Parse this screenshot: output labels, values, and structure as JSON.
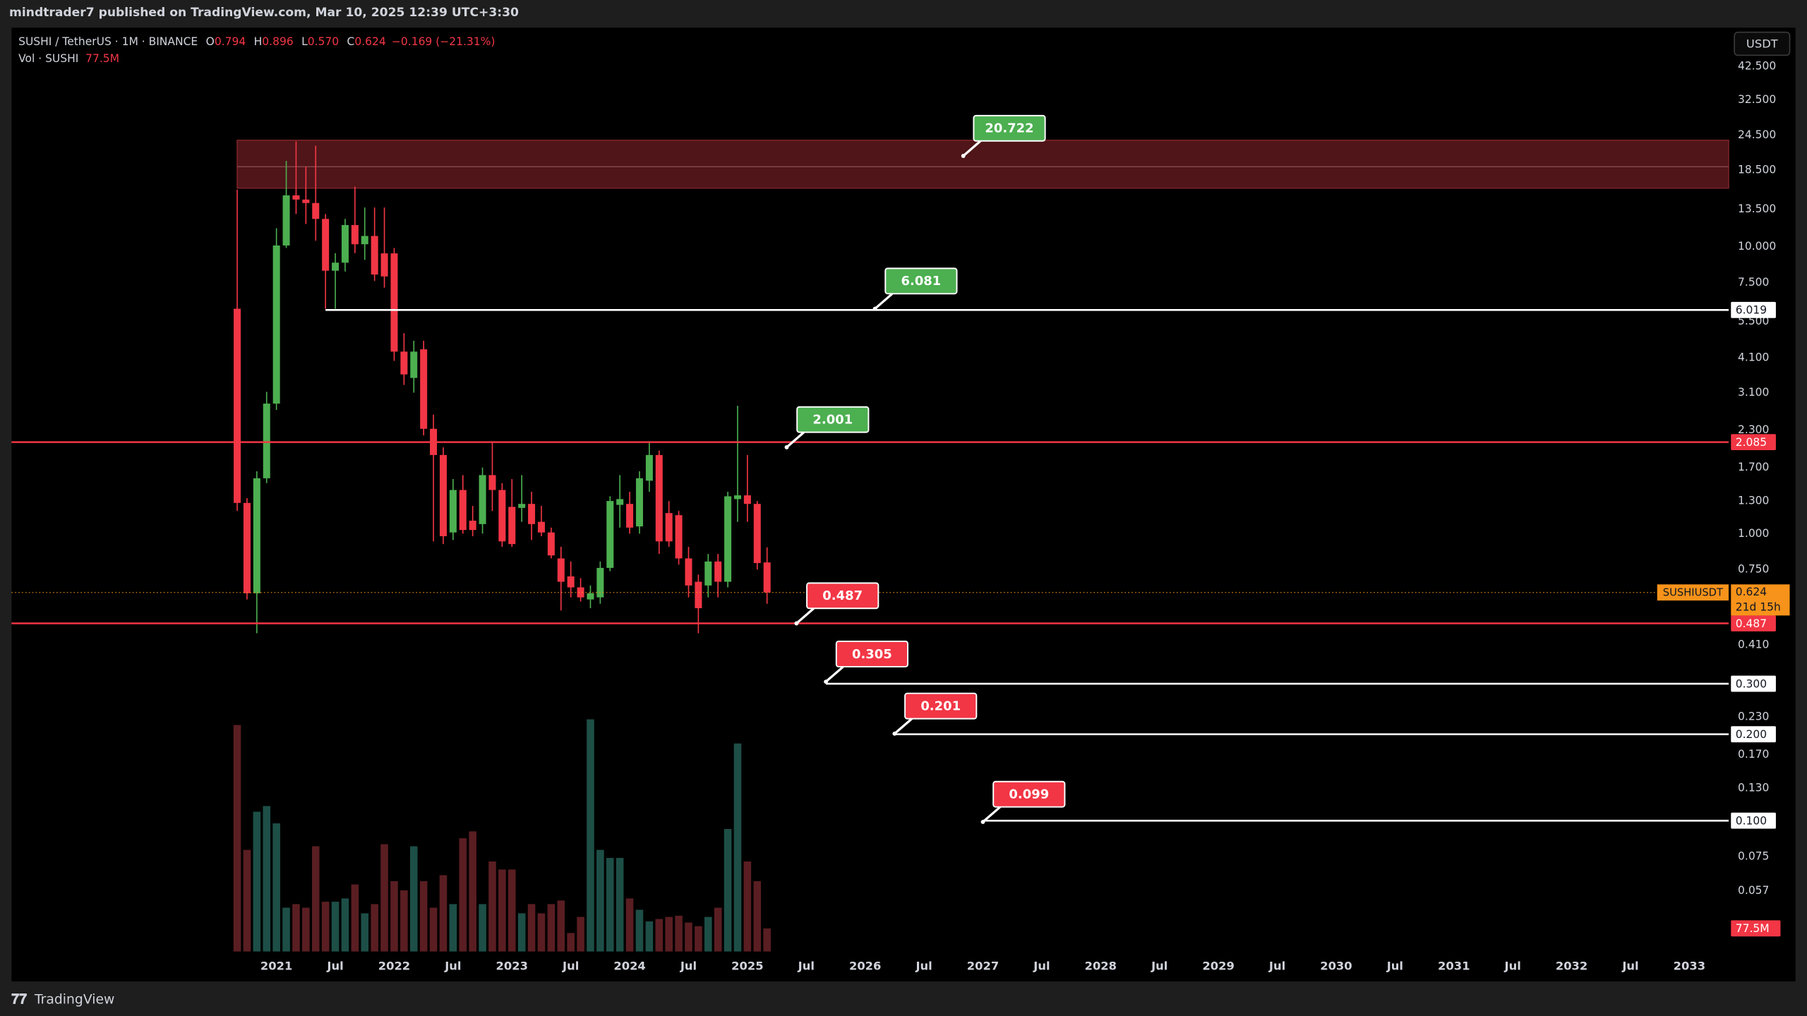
{
  "header": "mindtrader7 published on TradingView.com, Mar 10, 2025 12:39 UTC+3:30",
  "footer": "TradingView",
  "currency_button": "USDT",
  "chart_data": {
    "type": "candlestick",
    "legend": {
      "symbol": "SUSHI / TetherUS · 1M · BINANCE",
      "fields": [
        {
          "key": "O",
          "value": "0.794"
        },
        {
          "key": "H",
          "value": "0.896"
        },
        {
          "key": "L",
          "value": "0.570"
        },
        {
          "key": "C",
          "value": "0.624"
        }
      ],
      "change": "−0.169 (−21.31%)"
    },
    "x": [
      "2020-09",
      "2020-10",
      "2020-11",
      "2020-12",
      "2021-01",
      "2021-02",
      "2021-03",
      "2021-04",
      "2021-05",
      "2021-06",
      "2021-07",
      "2021-08",
      "2021-09",
      "2021-10",
      "2021-11",
      "2021-12",
      "2022-01",
      "2022-02",
      "2022-03",
      "2022-04",
      "2022-05",
      "2022-06",
      "2022-07",
      "2022-08",
      "2022-09",
      "2022-10",
      "2022-11",
      "2022-12",
      "2023-01",
      "2023-02",
      "2023-03",
      "2023-04",
      "2023-05",
      "2023-06",
      "2023-07",
      "2023-08",
      "2023-09",
      "2023-10",
      "2023-11",
      "2023-12",
      "2024-01",
      "2024-02",
      "2024-03",
      "2024-04",
      "2024-05",
      "2024-06",
      "2024-07",
      "2024-08",
      "2024-09",
      "2024-10",
      "2024-11",
      "2024-12",
      "2025-01",
      "2025-02",
      "2025-03"
    ],
    "open": [
      6.08,
      1.28,
      0.62,
      1.56,
      2.84,
      10.1,
      15.1,
      14.6,
      14.2,
      12.5,
      8.25,
      8.8,
      11.9,
      10.2,
      10.9,
      9.48,
      9.48,
      4.31,
      3.49,
      4.39,
      2.32,
      1.88,
      1.01,
      1.42,
      1.11,
      1.08,
      1.6,
      1.42,
      1.24,
      1.23,
      1.27,
      1.1,
      1.01,
      0.82,
      0.71,
      0.65,
      0.59,
      0.6,
      0.76,
      1.26,
      1.27,
      1.06,
      1.53,
      1.88,
      1.18,
      1.16,
      0.82,
      0.68,
      0.66,
      0.8,
      0.68,
      1.32,
      1.36,
      1.27,
      0.794
    ],
    "high": [
      15.8,
      1.33,
      1.65,
      3.12,
      11.6,
      19.9,
      23.3,
      19.0,
      22.5,
      13.0,
      9.5,
      12.5,
      16.2,
      13.7,
      13.7,
      13.7,
      9.9,
      5.0,
      4.7,
      4.7,
      2.6,
      2.0,
      1.55,
      1.6,
      1.25,
      1.7,
      2.08,
      1.5,
      1.55,
      1.6,
      1.4,
      1.25,
      1.05,
      0.9,
      0.8,
      0.7,
      0.66,
      0.8,
      1.35,
      1.6,
      1.4,
      1.65,
      2.1,
      1.95,
      1.3,
      1.2,
      0.9,
      0.72,
      0.85,
      0.85,
      1.4,
      2.79,
      1.88,
      1.3,
      0.896
    ],
    "low": [
      1.2,
      0.59,
      0.45,
      1.5,
      2.7,
      9.9,
      13.0,
      12.0,
      10.5,
      6.08,
      6.08,
      8.2,
      9.5,
      9.0,
      7.6,
      7.2,
      4.0,
      3.3,
      3.1,
      2.2,
      0.94,
      0.92,
      0.95,
      1.0,
      0.98,
      1.0,
      1.2,
      0.9,
      0.9,
      1.1,
      0.95,
      0.98,
      0.82,
      0.54,
      0.6,
      0.58,
      0.55,
      0.57,
      0.74,
      1.05,
      1.0,
      1.0,
      1.4,
      0.85,
      0.9,
      0.78,
      0.6,
      0.45,
      0.6,
      0.6,
      0.65,
      1.1,
      1.1,
      0.75,
      0.57
    ],
    "close": [
      1.28,
      0.62,
      1.56,
      2.84,
      10.1,
      15.1,
      14.6,
      14.2,
      12.5,
      8.25,
      8.8,
      11.9,
      10.2,
      10.9,
      8.0,
      7.88,
      4.31,
      3.59,
      4.31,
      2.32,
      1.88,
      0.98,
      1.42,
      1.03,
      1.03,
      1.6,
      1.42,
      0.94,
      0.92,
      1.27,
      1.08,
      1.01,
      0.84,
      0.68,
      0.65,
      0.6,
      0.62,
      0.76,
      1.3,
      1.32,
      1.05,
      1.56,
      1.88,
      0.94,
      0.94,
      0.82,
      0.66,
      0.55,
      0.8,
      0.68,
      1.35,
      1.36,
      1.27,
      0.79,
      0.624
    ],
    "up_color": "#4caf50",
    "down_color": "#f23645",
    "volume": {
      "name": "Vol · SUSHI",
      "axis": "y2",
      "up_color": "#1d4f47",
      "down_color": "#5a1e22",
      "values": [
        760000000,
        341000000,
        469000000,
        488000000,
        430000000,
        147000000,
        159000000,
        147000000,
        353000000,
        167000000,
        167000000,
        178000000,
        225000000,
        128000000,
        159000000,
        360000000,
        236000000,
        205000000,
        353000000,
        236000000,
        147000000,
        256000000,
        159000000,
        380000000,
        403000000,
        159000000,
        302000000,
        275000000,
        275000000,
        128000000,
        159000000,
        128000000,
        159000000,
        171000000,
        62000000,
        116000000,
        779000000,
        341000000,
        314000000,
        314000000,
        178000000,
        140000000,
        101000000,
        109000000,
        116000000,
        120000000,
        97000000,
        85000000,
        116000000,
        147000000,
        411000000,
        698000000,
        302000000,
        236000000,
        77500000
      ],
      "last_label": "77.5M",
      "label_color": "#f23645"
    },
    "log_scale": true,
    "ylim": [
      0.035,
      58
    ],
    "y2lim": [
      0,
      3100000000
    ],
    "xlim": [
      "2018-10",
      "2033-05"
    ],
    "yticks": [
      {
        "value": 42.5,
        "label": "42.500"
      },
      {
        "value": 32.5,
        "label": "32.500"
      },
      {
        "value": 24.5,
        "label": "24.500"
      },
      {
        "value": 18.5,
        "label": "18.500"
      },
      {
        "value": 13.5,
        "label": "13.500"
      },
      {
        "value": 10,
        "label": "10.000"
      },
      {
        "value": 7.5,
        "label": "7.500"
      },
      {
        "value": 5.5,
        "label": "5.500"
      },
      {
        "value": 4.1,
        "label": "4.100"
      },
      {
        "value": 3.1,
        "label": "3.100"
      },
      {
        "value": 2.3,
        "label": "2.300"
      },
      {
        "value": 1.7,
        "label": "1.700"
      },
      {
        "value": 1.3,
        "label": "1.300"
      },
      {
        "value": 1,
        "label": "1.000"
      },
      {
        "value": 0.75,
        "label": "0.750"
      },
      {
        "value": 0.41,
        "label": "0.410"
      },
      {
        "value": 0.23,
        "label": "0.230"
      },
      {
        "value": 0.17,
        "label": "0.170"
      },
      {
        "value": 0.13,
        "label": "0.130"
      },
      0.075,
      0.057
    ],
    "xticks": [
      {
        "value": "2021-01",
        "label": "2021"
      },
      {
        "value": "2021-07",
        "label": "Jul"
      },
      {
        "value": "2022-01",
        "label": "2022"
      },
      {
        "value": "2022-07",
        "label": "Jul"
      },
      {
        "value": "2023-01",
        "label": "2023"
      },
      {
        "value": "2023-07",
        "label": "Jul"
      },
      {
        "value": "2024-01",
        "label": "2024"
      },
      {
        "value": "2024-07",
        "label": "Jul"
      },
      {
        "value": "2025-01",
        "label": "2025"
      },
      {
        "value": "2025-07",
        "label": "Jul"
      },
      {
        "value": "2026-01",
        "label": "2026"
      },
      {
        "value": "2026-07",
        "label": "Jul"
      },
      {
        "value": "2027-01",
        "label": "2027"
      },
      {
        "value": "2027-07",
        "label": "Jul"
      },
      {
        "value": "2028-01",
        "label": "2028"
      },
      {
        "value": "2028-07",
        "label": "Jul"
      },
      {
        "value": "2029-01",
        "label": "2029"
      },
      {
        "value": "2029-07",
        "label": "Jul"
      },
      {
        "value": "2030-01",
        "label": "2030"
      },
      {
        "value": "2030-07",
        "label": "Jul"
      },
      {
        "value": "2031-01",
        "label": "2031"
      },
      {
        "value": "2031-07",
        "label": "Jul"
      },
      {
        "value": "2032-01",
        "label": "2032"
      },
      {
        "value": "2032-07",
        "label": "Jul"
      },
      {
        "value": "2033-01",
        "label": "2033"
      }
    ],
    "zone": {
      "top": 23.5,
      "bottom": 16.0,
      "mid": 19.0,
      "from": "2020-09",
      "color": "#4f1519"
    },
    "levels": [
      {
        "value": 6.019,
        "label": "6.019",
        "color": "#ffffff",
        "from": "2021-06"
      },
      {
        "value": 2.085,
        "label": "2.085",
        "color": "#f23645"
      },
      {
        "value": 0.487,
        "label": "0.487",
        "color": "#f23645"
      },
      {
        "value": 0.3,
        "label": "0.300",
        "color": "#ffffff",
        "from": "2025-09"
      },
      {
        "value": 0.2,
        "label": "0.200",
        "color": "#ffffff",
        "from": "2026-04"
      },
      {
        "value": 0.1,
        "label": "0.100",
        "color": "#ffffff",
        "from": "2027-01"
      }
    ],
    "callouts": [
      {
        "value": 20.722,
        "x": "2026-11",
        "color": "#4caf50"
      },
      {
        "value": 6.081,
        "x": "2026-02",
        "color": "#4caf50"
      },
      {
        "value": 2.001,
        "x": "2025-05",
        "color": "#4caf50"
      },
      {
        "value": 0.487,
        "x": "2025-06",
        "color": "#f23645"
      },
      {
        "value": 0.305,
        "x": "2025-09",
        "color": "#f23645"
      },
      {
        "value": 0.201,
        "x": "2026-04",
        "color": "#f23645"
      },
      {
        "value": 0.099,
        "x": "2027-01",
        "color": "#f23645"
      }
    ],
    "current": {
      "name": "SUSHIUSDT",
      "value": 0.624,
      "countdown": "21d 15h",
      "color": "#f7931a"
    }
  }
}
